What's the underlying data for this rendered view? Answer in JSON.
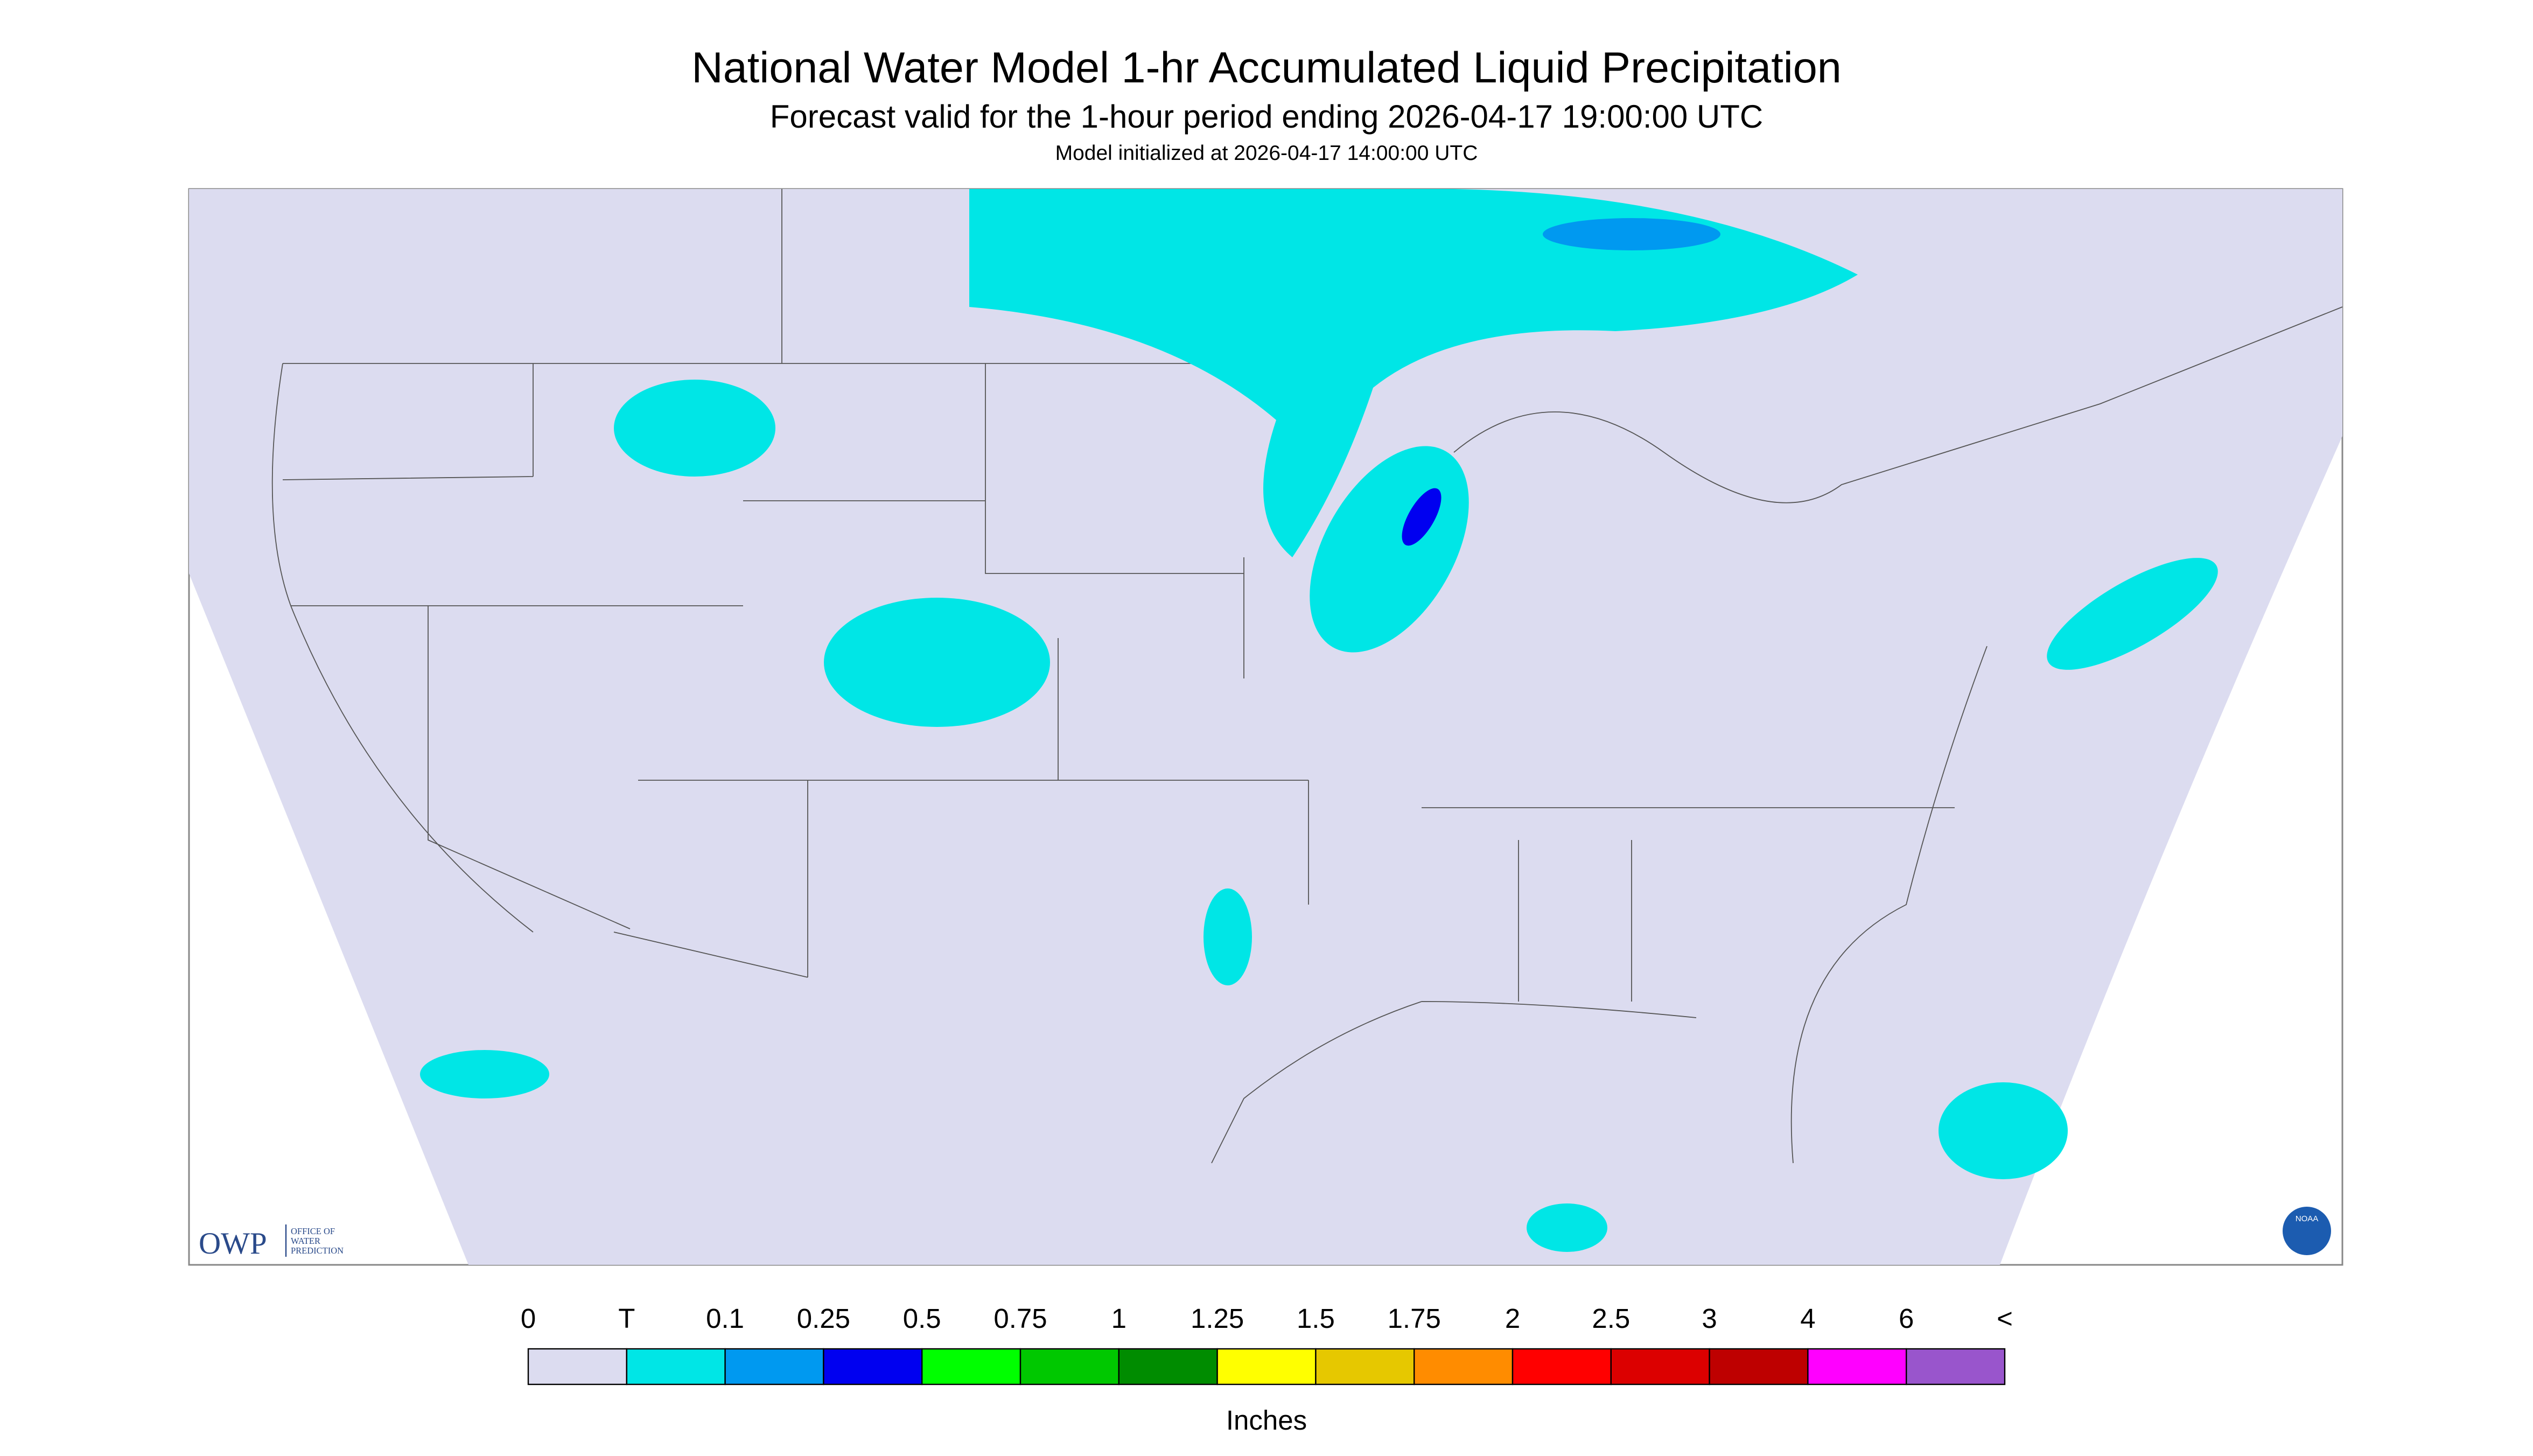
{
  "header": {
    "title": "National Water Model 1-hr Accumulated Liquid Precipitation",
    "subtitle": "Forecast valid for the 1-hour period ending 2026-04-17 19:00:00 UTC",
    "note": "Model initialized at 2026-04-17 14:00:00 UTC"
  },
  "logos": {
    "owp": "OWP",
    "owp_text": [
      "OFFICE OF",
      "WATER",
      "PREDICTION"
    ],
    "noaa": "NOAA"
  },
  "legend": {
    "labels": [
      "0",
      "T",
      "0.1",
      "0.25",
      "0.5",
      "0.75",
      "1",
      "1.25",
      "1.5",
      "1.75",
      "2",
      "2.5",
      "3",
      "4",
      "6",
      "<"
    ],
    "colors": [
      "#dcdcf0",
      "#00e6e6",
      "#0099f0",
      "#0000f0",
      "#00ff00",
      "#00c800",
      "#008c00",
      "#ffff00",
      "#e6c800",
      "#ff8c00",
      "#ff0000",
      "#dc0000",
      "#be0000",
      "#ff00ff",
      "#9955cc"
    ],
    "unit": "Inches"
  }
}
